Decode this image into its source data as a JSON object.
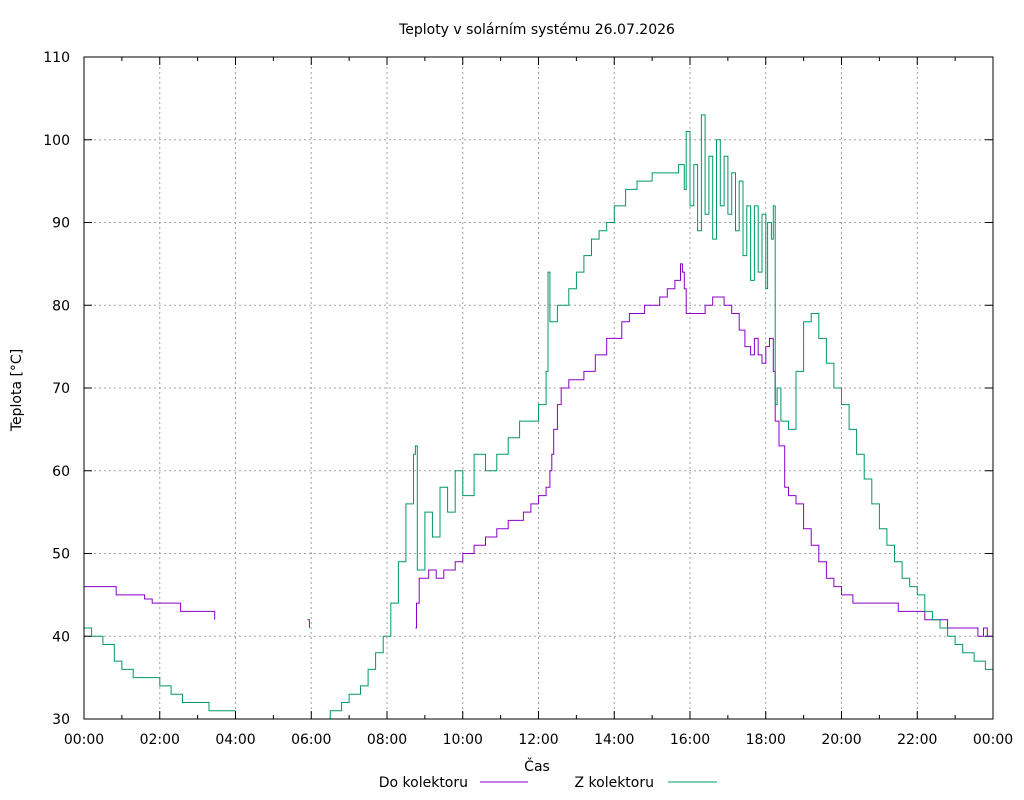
{
  "chart_data": {
    "type": "line",
    "title": "Teploty v solárním systému 26.07.2026",
    "xlabel": "Čas",
    "ylabel": "Teplota [°C]",
    "xlim": [
      0,
      24
    ],
    "ylim": [
      30,
      110
    ],
    "x_ticks": [
      "00:00",
      "02:00",
      "04:00",
      "06:00",
      "08:00",
      "10:00",
      "12:00",
      "14:00",
      "16:00",
      "18:00",
      "20:00",
      "22:00",
      "00:00"
    ],
    "y_ticks": [
      30,
      40,
      50,
      60,
      70,
      80,
      90,
      100,
      110
    ],
    "grid": true,
    "legend_position": "bottom",
    "x_unit": "hours since 00:00",
    "series": [
      {
        "name": "Do kolektoru",
        "color": "#8a00c8",
        "points": [
          [
            0.0,
            46
          ],
          [
            0.8,
            46
          ],
          [
            0.85,
            45
          ],
          [
            1.5,
            45
          ],
          [
            1.6,
            44.5
          ],
          [
            1.8,
            44
          ],
          [
            2.5,
            44
          ],
          [
            2.55,
            43
          ],
          [
            3.4,
            43
          ],
          [
            3.45,
            42
          ],
          [
            5.9,
            42
          ],
          [
            5.95,
            41
          ],
          [
            8.75,
            41
          ],
          [
            8.78,
            44
          ],
          [
            8.85,
            47
          ],
          [
            9.1,
            48
          ],
          [
            9.3,
            47
          ],
          [
            9.5,
            48
          ],
          [
            9.8,
            49
          ],
          [
            10.0,
            50
          ],
          [
            10.3,
            51
          ],
          [
            10.6,
            52
          ],
          [
            10.9,
            53
          ],
          [
            11.2,
            54
          ],
          [
            11.6,
            55
          ],
          [
            11.8,
            56
          ],
          [
            12.0,
            57
          ],
          [
            12.2,
            58
          ],
          [
            12.3,
            60
          ],
          [
            12.35,
            62
          ],
          [
            12.4,
            65
          ],
          [
            12.5,
            68
          ],
          [
            12.6,
            70
          ],
          [
            12.8,
            71
          ],
          [
            13.2,
            72
          ],
          [
            13.5,
            74
          ],
          [
            13.8,
            76
          ],
          [
            14.2,
            78
          ],
          [
            14.4,
            79
          ],
          [
            14.8,
            80
          ],
          [
            15.2,
            81
          ],
          [
            15.4,
            82
          ],
          [
            15.6,
            83
          ],
          [
            15.75,
            85
          ],
          [
            15.8,
            84
          ],
          [
            15.85,
            82
          ],
          [
            15.9,
            79
          ],
          [
            16.2,
            79
          ],
          [
            16.4,
            80
          ],
          [
            16.6,
            81
          ],
          [
            16.9,
            80
          ],
          [
            17.1,
            79
          ],
          [
            17.3,
            77
          ],
          [
            17.45,
            75
          ],
          [
            17.6,
            74
          ],
          [
            17.7,
            76
          ],
          [
            17.8,
            74
          ],
          [
            17.9,
            73
          ],
          [
            18.0,
            75
          ],
          [
            18.1,
            76
          ],
          [
            18.2,
            72
          ],
          [
            18.25,
            66
          ],
          [
            18.35,
            63
          ],
          [
            18.5,
            58
          ],
          [
            18.6,
            57
          ],
          [
            18.8,
            56
          ],
          [
            19.0,
            53
          ],
          [
            19.2,
            51
          ],
          [
            19.4,
            49
          ],
          [
            19.6,
            47
          ],
          [
            19.8,
            46
          ],
          [
            20.0,
            45
          ],
          [
            20.3,
            44
          ],
          [
            21.0,
            44
          ],
          [
            21.5,
            43
          ],
          [
            22.0,
            43
          ],
          [
            22.2,
            42
          ],
          [
            22.8,
            41
          ],
          [
            23.5,
            41
          ],
          [
            23.6,
            40
          ],
          [
            23.75,
            41
          ],
          [
            23.85,
            40
          ],
          [
            24.0,
            40
          ]
        ]
      },
      {
        "name": "Z kolektoru",
        "color": "#009868",
        "points": [
          [
            0.0,
            41
          ],
          [
            0.2,
            40
          ],
          [
            0.5,
            39
          ],
          [
            0.8,
            37
          ],
          [
            1.0,
            36
          ],
          [
            1.3,
            35
          ],
          [
            1.9,
            35
          ],
          [
            2.0,
            34
          ],
          [
            2.3,
            33
          ],
          [
            2.6,
            32
          ],
          [
            3.1,
            32
          ],
          [
            3.3,
            31
          ],
          [
            3.8,
            31
          ],
          [
            4.0,
            31
          ],
          [
            6.2,
            30
          ],
          [
            6.5,
            31
          ],
          [
            6.8,
            32
          ],
          [
            7.0,
            33
          ],
          [
            7.3,
            34
          ],
          [
            7.5,
            36
          ],
          [
            7.7,
            38
          ],
          [
            7.9,
            40
          ],
          [
            8.1,
            44
          ],
          [
            8.3,
            49
          ],
          [
            8.5,
            56
          ],
          [
            8.7,
            62
          ],
          [
            8.75,
            63
          ],
          [
            8.8,
            48
          ],
          [
            9.0,
            55
          ],
          [
            9.2,
            52
          ],
          [
            9.4,
            58
          ],
          [
            9.6,
            55
          ],
          [
            9.8,
            60
          ],
          [
            10.0,
            57
          ],
          [
            10.3,
            62
          ],
          [
            10.6,
            60
          ],
          [
            10.9,
            62
          ],
          [
            11.2,
            64
          ],
          [
            11.5,
            66
          ],
          [
            11.8,
            66
          ],
          [
            12.0,
            68
          ],
          [
            12.2,
            72
          ],
          [
            12.25,
            84
          ],
          [
            12.3,
            78
          ],
          [
            12.5,
            80
          ],
          [
            12.8,
            82
          ],
          [
            13.0,
            84
          ],
          [
            13.2,
            86
          ],
          [
            13.4,
            88
          ],
          [
            13.6,
            89
          ],
          [
            13.8,
            90
          ],
          [
            14.0,
            92
          ],
          [
            14.3,
            94
          ],
          [
            14.6,
            95
          ],
          [
            15.0,
            96
          ],
          [
            15.3,
            96
          ],
          [
            15.5,
            96
          ],
          [
            15.7,
            97
          ],
          [
            15.85,
            94
          ],
          [
            15.9,
            101
          ],
          [
            16.0,
            92
          ],
          [
            16.1,
            97
          ],
          [
            16.2,
            89
          ],
          [
            16.3,
            103
          ],
          [
            16.4,
            91
          ],
          [
            16.5,
            98
          ],
          [
            16.6,
            88
          ],
          [
            16.7,
            100
          ],
          [
            16.8,
            92
          ],
          [
            16.9,
            98
          ],
          [
            17.0,
            91
          ],
          [
            17.1,
            96
          ],
          [
            17.2,
            89
          ],
          [
            17.3,
            95
          ],
          [
            17.4,
            86
          ],
          [
            17.5,
            92
          ],
          [
            17.6,
            83
          ],
          [
            17.7,
            92
          ],
          [
            17.8,
            84
          ],
          [
            17.9,
            91
          ],
          [
            18.0,
            82
          ],
          [
            18.05,
            90
          ],
          [
            18.15,
            88
          ],
          [
            18.2,
            92
          ],
          [
            18.25,
            68
          ],
          [
            18.3,
            70
          ],
          [
            18.4,
            66
          ],
          [
            18.6,
            65
          ],
          [
            18.8,
            72
          ],
          [
            19.0,
            78
          ],
          [
            19.2,
            79
          ],
          [
            19.4,
            76
          ],
          [
            19.6,
            73
          ],
          [
            19.8,
            70
          ],
          [
            20.0,
            68
          ],
          [
            20.2,
            65
          ],
          [
            20.4,
            62
          ],
          [
            20.6,
            59
          ],
          [
            20.8,
            56
          ],
          [
            21.0,
            53
          ],
          [
            21.2,
            51
          ],
          [
            21.4,
            49
          ],
          [
            21.6,
            47
          ],
          [
            21.8,
            46
          ],
          [
            22.0,
            45
          ],
          [
            22.2,
            43
          ],
          [
            22.4,
            42
          ],
          [
            22.6,
            41
          ],
          [
            22.8,
            40
          ],
          [
            23.0,
            39
          ],
          [
            23.2,
            38
          ],
          [
            23.5,
            37
          ],
          [
            23.8,
            36
          ],
          [
            24.0,
            36
          ]
        ]
      }
    ]
  }
}
